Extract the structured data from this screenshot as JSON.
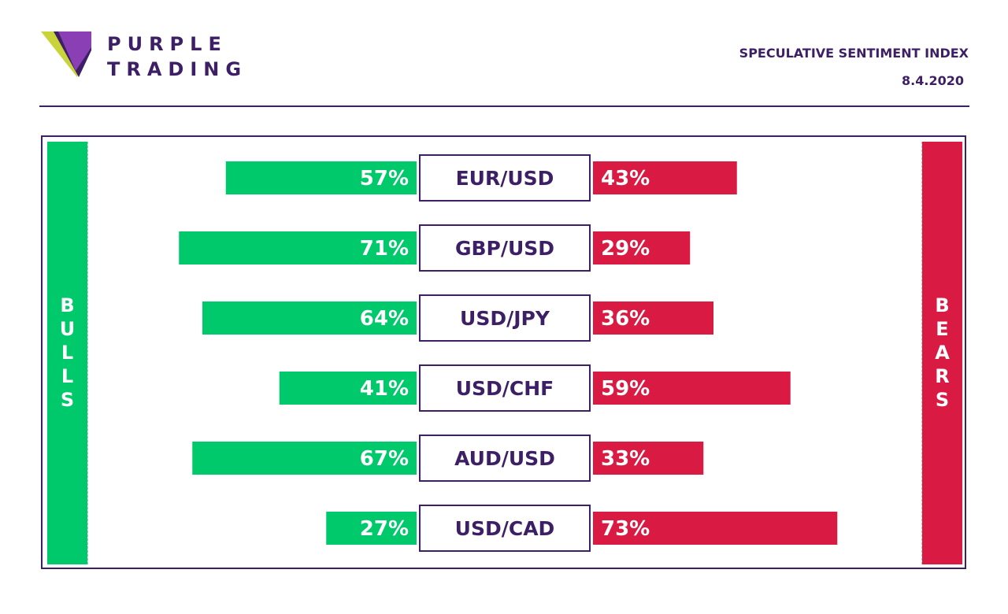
{
  "brand": {
    "line1": "PURPLE",
    "line2": "TRADING"
  },
  "header": {
    "title": "SPECULATIVE SENTIMENT INDEX",
    "date": "8.4.2020"
  },
  "sides": {
    "bulls": "BULLS",
    "bears": "BEARS"
  },
  "colors": {
    "bulls": "#00c96b",
    "bears": "#d91a42",
    "brand": "#3d1f66",
    "logo_green": "#c8d43a"
  },
  "chart_data": {
    "type": "bar",
    "title": "SPECULATIVE SENTIMENT INDEX",
    "categories": [
      "EUR/USD",
      "GBP/USD",
      "USD/JPY",
      "USD/CHF",
      "AUD/USD",
      "USD/CAD"
    ],
    "series": [
      {
        "name": "BULLS",
        "values": [
          57,
          71,
          64,
          41,
          67,
          27
        ]
      },
      {
        "name": "BEARS",
        "values": [
          43,
          29,
          36,
          59,
          33,
          73
        ]
      }
    ],
    "value_suffix": "%",
    "grid": false,
    "legend": "none"
  }
}
